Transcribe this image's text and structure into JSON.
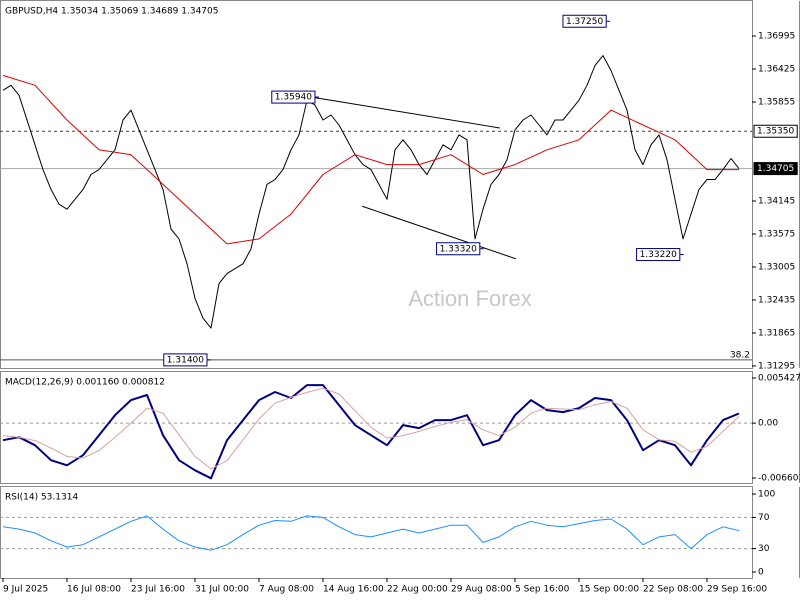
{
  "chart_data": [
    {
      "type": "line",
      "title": "GBPUSD,H4  1.35034 1.35069 1.34689 1.34705",
      "watermark": "Action Forex",
      "xlim": [
        -0.375,
        93.625
      ],
      "ylim": [
        1.3126,
        1.376
      ],
      "yticks": [
        1.36995,
        1.36425,
        1.35855,
        1.34145,
        1.33575,
        1.33005,
        1.32435,
        1.31865,
        1.31295
      ],
      "series": [
        {
          "color": "#000000",
          "width": 1,
          "x": [
            0,
            1,
            2,
            3,
            4,
            5,
            6,
            7,
            8,
            9,
            10,
            11,
            12,
            13,
            14,
            15,
            16,
            17,
            18,
            19,
            20,
            21,
            22,
            23,
            24,
            25,
            26,
            27,
            28,
            29,
            30,
            31,
            32,
            33,
            34,
            35,
            36,
            37,
            38,
            39,
            40,
            41,
            42,
            43,
            44,
            45,
            46,
            47,
            48,
            49,
            50,
            51,
            52,
            53,
            54,
            55,
            56,
            57,
            58,
            59,
            60,
            61,
            62,
            63,
            64,
            65,
            66,
            67,
            68,
            69,
            70,
            71,
            72,
            73,
            74,
            75,
            76,
            77,
            78,
            79,
            80,
            81,
            82,
            83,
            84,
            85,
            86,
            87,
            88,
            89,
            90,
            91,
            92
          ],
          "values": [
            1.36057,
            1.36143,
            1.35972,
            1.35544,
            1.35116,
            1.34688,
            1.34345,
            1.34089,
            1.34003,
            1.34174,
            1.34345,
            1.34602,
            1.34688,
            1.34859,
            1.3503,
            1.35544,
            1.35715,
            1.35373,
            1.3503,
            1.34688,
            1.34345,
            1.33661,
            1.3349,
            1.33062,
            1.32462,
            1.3212,
            1.31949,
            1.32719,
            1.3289,
            1.32976,
            1.33062,
            1.33318,
            1.33918,
            1.34431,
            1.34517,
            1.34688,
            1.3503,
            1.35287,
            1.35886,
            1.35801,
            1.35544,
            1.3563,
            1.35458,
            1.35202,
            1.34945,
            1.34774,
            1.34688,
            1.34431,
            1.34174,
            1.3503,
            1.35202,
            1.3503,
            1.34774,
            1.34602,
            1.34859,
            1.35116,
            1.3503,
            1.35287,
            1.35202,
            1.3349,
            1.34003,
            1.34431,
            1.34602,
            1.34859,
            1.35373,
            1.35544,
            1.3563,
            1.35458,
            1.35287,
            1.35544,
            1.35544,
            1.35715,
            1.35886,
            1.36143,
            1.36486,
            1.36657,
            1.364,
            1.36057,
            1.35715,
            1.3503,
            1.34774,
            1.35116,
            1.35287,
            1.34859,
            1.34174,
            1.3349,
            1.33918,
            1.34345,
            1.34517,
            1.34517,
            1.34688,
            1.3488,
            1.34705
          ]
        },
        {
          "color": "#e00000",
          "width": 1,
          "x": [
            0,
            4,
            8,
            12,
            16,
            20,
            24,
            28,
            32,
            36,
            40,
            44,
            48,
            52,
            56,
            60,
            64,
            68,
            72,
            76,
            80,
            84,
            88,
            92
          ],
          "values": [
            1.36314,
            1.36143,
            1.35544,
            1.3503,
            1.34945,
            1.34431,
            1.33918,
            1.33404,
            1.3349,
            1.33918,
            1.34602,
            1.34945,
            1.34774,
            1.34774,
            1.34945,
            1.34602,
            1.34774,
            1.3503,
            1.35202,
            1.35715,
            1.35458,
            1.35202,
            1.34688,
            1.34688
          ]
        }
      ],
      "trendlines": [
        {
          "x": [
            38.6,
            62.1
          ],
          "values": [
            1.3594,
            1.35407
          ]
        },
        {
          "x": [
            44.9,
            64.1
          ],
          "values": [
            1.34054,
            1.33147
          ]
        }
      ],
      "annotations": [
        {
          "label": "1.35940",
          "value": 1.3594,
          "x": 39
        },
        {
          "label": "1.33320",
          "value": 1.3332,
          "x": 59.6
        },
        {
          "label": "1.37250",
          "value": 1.3725,
          "x": 75.4
        },
        {
          "label": "1.33220",
          "value": 1.3322,
          "x": 84.6
        },
        {
          "label": "1.31400",
          "value": 1.314,
          "x": 25.5
        }
      ],
      "levels": [
        {
          "value": 1.3535,
          "label": "1.35350",
          "style": "dashed"
        },
        {
          "value": 1.34705,
          "label": "1.34705",
          "style": "current"
        }
      ],
      "fib": {
        "value": 1.314,
        "label": "38.2"
      }
    },
    {
      "type": "line",
      "title": "MACD(12,26,9) 0.001160 0.000812",
      "xlim": [
        -0.375,
        93.625
      ],
      "ylim": [
        -0.0072,
        0.00615
      ],
      "yticks": [
        0.005427,
        {
          "value": 0,
          "label": "0.00"
        },
        -0.006603
      ],
      "hlines": [
        0
      ],
      "series": [
        {
          "color": "#000080",
          "width": 2,
          "x": [
            0,
            2,
            4,
            6,
            8,
            10,
            12,
            14,
            16,
            18,
            20,
            22,
            24,
            26,
            28,
            30,
            32,
            34,
            36,
            38,
            40,
            42,
            44,
            46,
            48,
            50,
            52,
            54,
            56,
            58,
            60,
            62,
            64,
            66,
            68,
            70,
            72,
            74,
            76,
            78,
            80,
            82,
            84,
            86,
            88,
            90,
            92
          ],
          "values": [
            -0.00205,
            -0.00169,
            -0.00265,
            -0.00446,
            -0.00507,
            -0.00386,
            -0.00145,
            0.00096,
            0.00277,
            0.00338,
            -0.00145,
            -0.00446,
            -0.00567,
            -0.00663,
            -0.00205,
            0.00036,
            0.00277,
            0.00374,
            0.00302,
            0.00458,
            0.00458,
            0.00217,
            -0.00024,
            -0.00145,
            -0.00265,
            -0.00024,
            -0.0006,
            0.00036,
            0.00036,
            0.00096,
            -0.00265,
            -0.00205,
            0.00096,
            0.00277,
            0.00157,
            0.00133,
            0.00181,
            0.00302,
            0.00277,
            0.00036,
            -0.00326,
            -0.00205,
            -0.00265,
            -0.00507,
            -0.00205,
            0.00036,
            0.00116
          ]
        },
        {
          "color": "#d8a0a0",
          "width": 1,
          "x": [
            0,
            2,
            4,
            6,
            8,
            10,
            12,
            14,
            16,
            18,
            20,
            22,
            24,
            26,
            28,
            30,
            32,
            34,
            36,
            38,
            40,
            42,
            44,
            46,
            48,
            50,
            52,
            54,
            56,
            58,
            60,
            62,
            64,
            66,
            68,
            70,
            72,
            74,
            76,
            78,
            80,
            82,
            84,
            86,
            88,
            90,
            92
          ],
          "values": [
            -0.0015,
            -0.0017,
            -0.0021,
            -0.003,
            -0.004,
            -0.0042,
            -0.0033,
            -0.0017,
            0,
            0.0018,
            0.0012,
            -0.0014,
            -0.004,
            -0.0055,
            -0.0045,
            -0.002,
            0.0005,
            0.0024,
            0.0031,
            0.0037,
            0.0042,
            0.0035,
            0.0015,
            -0.0005,
            -0.0018,
            -0.0015,
            -0.001,
            -0.0004,
            0.0001,
            0.0004,
            -0.0008,
            -0.0015,
            -0.0005,
            0.0012,
            0.0018,
            0.0017,
            0.0016,
            0.0022,
            0.0026,
            0.0018,
            -0.0008,
            -0.002,
            -0.0022,
            -0.0035,
            -0.0028,
            -0.001,
            0.000812
          ]
        }
      ]
    },
    {
      "type": "line",
      "title": "RSI(14) 53.1314",
      "xlim": [
        -0.375,
        93.625
      ],
      "ylim": [
        -7.7,
        109
      ],
      "yticks": [
        100,
        70,
        30,
        0
      ],
      "hlines": [
        70,
        30
      ],
      "xticks": [
        {
          "value": 0,
          "label": "9 Jul 2025"
        },
        {
          "value": 8,
          "label": "16 Jul 08:00"
        },
        {
          "value": 16,
          "label": "23 Jul 16:00"
        },
        {
          "value": 24,
          "label": "31 Jul 00:00"
        },
        {
          "value": 32,
          "label": "7 Aug 08:00"
        },
        {
          "value": 40,
          "label": "14 Aug 16:00"
        },
        {
          "value": 48,
          "label": "22 Aug 00:00"
        },
        {
          "value": 56,
          "label": "29 Aug 08:00"
        },
        {
          "value": 64,
          "label": "5 Sep 16:00"
        },
        {
          "value": 72,
          "label": "15 Sep 00:00"
        },
        {
          "value": 80,
          "label": "22 Sep 08:00"
        },
        {
          "value": 88,
          "label": "29 Sep 16:00"
        }
      ],
      "series": [
        {
          "color": "#1e90ff",
          "width": 1,
          "x": [
            0,
            2,
            4,
            6,
            8,
            10,
            12,
            14,
            16,
            18,
            20,
            22,
            24,
            26,
            28,
            30,
            32,
            34,
            36,
            38,
            40,
            42,
            44,
            46,
            48,
            50,
            52,
            54,
            56,
            58,
            60,
            62,
            64,
            66,
            68,
            70,
            72,
            74,
            76,
            78,
            80,
            82,
            84,
            86,
            88,
            90,
            92
          ],
          "values": [
            58,
            55,
            50,
            40,
            32,
            35,
            45,
            55,
            65,
            72,
            55,
            40,
            32,
            28,
            35,
            48,
            60,
            66,
            65,
            72,
            70,
            58,
            48,
            45,
            50,
            55,
            50,
            55,
            60,
            60,
            38,
            45,
            58,
            65,
            60,
            58,
            62,
            66,
            68,
            55,
            35,
            45,
            48,
            30,
            48,
            58,
            53.1314
          ]
        }
      ]
    }
  ]
}
